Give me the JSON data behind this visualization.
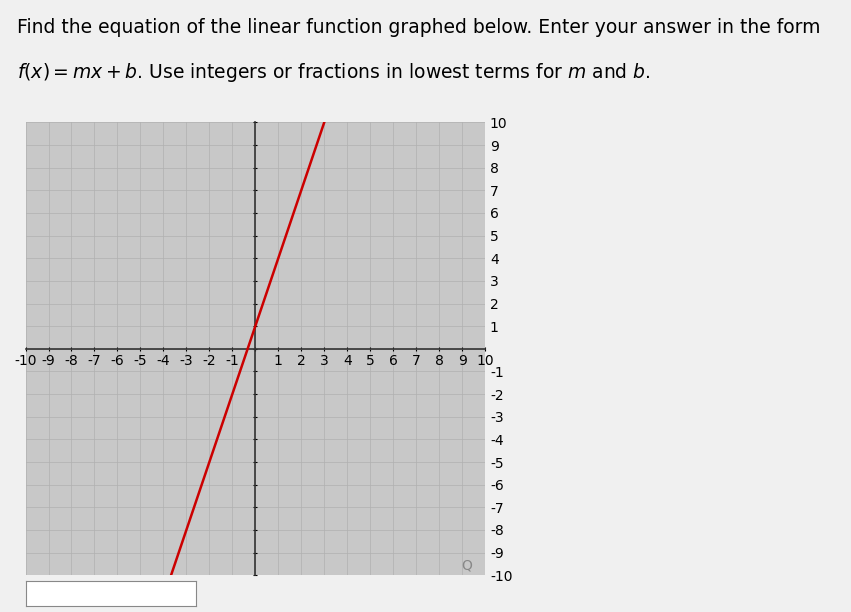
{
  "slope": 3,
  "intercept": 1,
  "x_range": [
    -10,
    10
  ],
  "y_range": [
    -10,
    10
  ],
  "line_color": "#cc0000",
  "line_width": 1.8,
  "grid_color": "#b0b0b0",
  "grid_linewidth": 0.5,
  "axis_color": "#333333",
  "plot_bg_color": "#c8c8c8",
  "outer_bg_color": "#f0f0f0",
  "tick_fontsize": 8,
  "title_line1": "Find the equation of the linear function graphed below. Enter your answer in the form",
  "title_line2_plain": "f(x) = mx + b. Use integers or fractions in lowest terms for ",
  "title_line2_italic": "m",
  "title_line2_plain2": " and ",
  "title_line2_italic2": "b",
  "title_line2_plain3": ".",
  "title_fontsize": 13.5
}
